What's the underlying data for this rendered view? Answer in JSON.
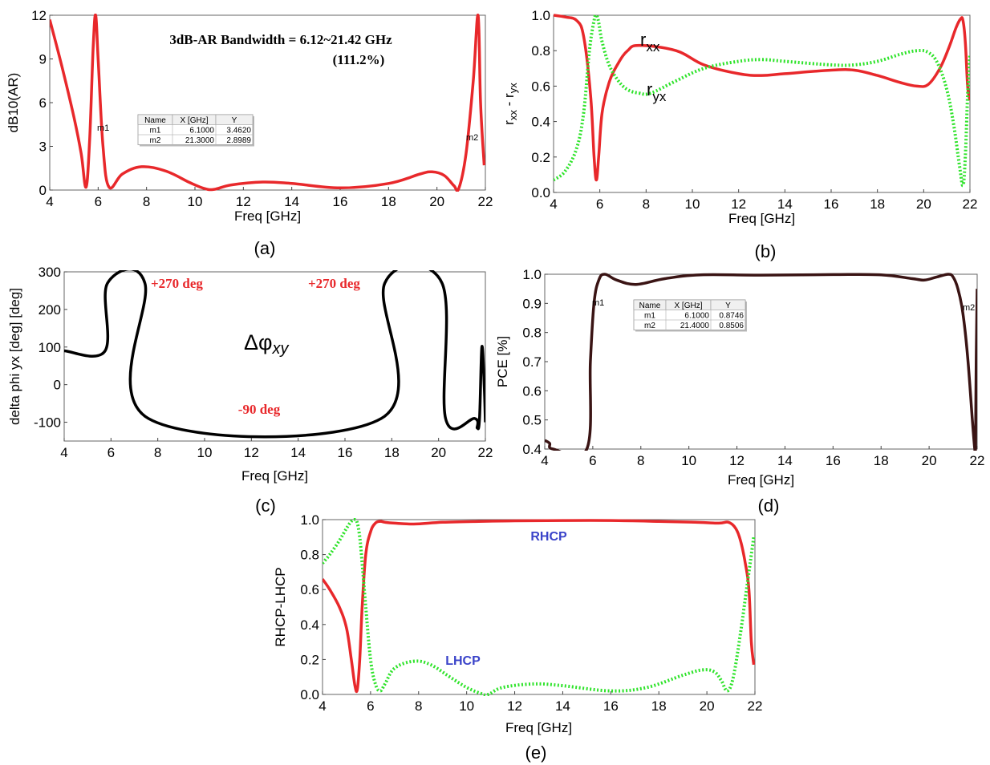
{
  "chart_data": [
    {
      "panel": "(a)",
      "type": "line",
      "xlabel": "Freq [GHz]",
      "ylabel": "dB10(AR)",
      "xlim": [
        4,
        22
      ],
      "ylim": [
        0,
        12
      ],
      "xticks": [
        4,
        6,
        8,
        10,
        12,
        14,
        16,
        18,
        20,
        22
      ],
      "yticks": [
        0,
        3,
        6,
        9,
        12
      ],
      "grid": false,
      "annotations": [
        "3dB-AR Bandwidth = 6.12~21.42 GHz",
        "(111.2%)"
      ],
      "marker_table": {
        "headers": [
          "Name",
          "X [GHz]",
          "Y"
        ],
        "rows": [
          [
            "m1",
            "6.1000",
            "3.4620"
          ],
          [
            "m2",
            "21.3000",
            "2.8989"
          ]
        ]
      },
      "markers": [
        {
          "name": "m1",
          "x": 6.1,
          "y": 3.462
        },
        {
          "name": "m2",
          "x": 21.3,
          "y": 2.8989
        }
      ],
      "series": [
        {
          "color": "#e8282b",
          "style": "solid",
          "x": [
            4,
            4.5,
            5,
            5.3,
            5.5,
            5.65,
            5.8,
            5.9,
            6.0,
            6.2,
            6.45,
            7.0,
            7.8,
            8.8,
            9.8,
            10.4,
            10.8,
            11.5,
            12.8,
            14.0,
            16.0,
            18.0,
            19.3,
            19.8,
            20.3,
            20.7,
            20.9,
            21.2,
            21.5,
            21.7,
            21.8,
            21.95
          ],
          "y": [
            11.7,
            8.5,
            5.0,
            2.5,
            0.2,
            3.5,
            10.0,
            12.0,
            9.0,
            3.0,
            0.2,
            1.1,
            1.6,
            1.3,
            0.5,
            0.1,
            0.05,
            0.35,
            0.55,
            0.45,
            0.15,
            0.45,
            1.1,
            1.25,
            1.0,
            0.3,
            0.1,
            2.5,
            7.5,
            12.0,
            6.0,
            1.7
          ]
        }
      ]
    },
    {
      "panel": "(b)",
      "type": "line",
      "xlabel": "Freq [GHz]",
      "ylabel": "r",
      "ylabel_sub": "xx",
      "ylabel_sep": " - r",
      "ylabel_sub2": "yx",
      "xlim": [
        4,
        22
      ],
      "ylim": [
        0,
        1
      ],
      "xticks": [
        4,
        6,
        8,
        10,
        12,
        14,
        16,
        18,
        20,
        22
      ],
      "yticks": [
        0.0,
        0.2,
        0.4,
        0.6,
        0.8,
        1.0
      ],
      "grid": false,
      "series": [
        {
          "name": "r",
          "name_sub": "xx",
          "color": "#e8282b",
          "style": "solid",
          "x": [
            4,
            4.5,
            5,
            5.3,
            5.6,
            5.75,
            5.85,
            5.95,
            6.1,
            6.4,
            6.8,
            7.2,
            7.7,
            9.3,
            10.5,
            12,
            13,
            14,
            16,
            17,
            18,
            19,
            19.7,
            20.2,
            20.7,
            21.1,
            21.4,
            21.6,
            21.7,
            21.8,
            21.9,
            22
          ],
          "y": [
            1.0,
            0.99,
            0.97,
            0.88,
            0.55,
            0.2,
            0.07,
            0.2,
            0.45,
            0.62,
            0.73,
            0.8,
            0.83,
            0.8,
            0.72,
            0.67,
            0.66,
            0.67,
            0.69,
            0.69,
            0.66,
            0.62,
            0.6,
            0.61,
            0.7,
            0.82,
            0.93,
            0.98,
            0.97,
            0.85,
            0.6,
            0.52
          ]
        },
        {
          "name": "r",
          "name_sub": "yx",
          "color": "#2ee32a",
          "style": "dotted",
          "x": [
            4,
            4.5,
            5,
            5.3,
            5.55,
            5.75,
            5.85,
            5.95,
            6.1,
            6.4,
            6.8,
            7.2,
            7.7,
            8.2,
            9.3,
            10.5,
            12,
            13,
            14,
            16,
            17,
            18,
            19,
            19.7,
            20.2,
            20.6,
            21.0,
            21.3,
            21.55,
            21.7,
            21.8,
            21.9,
            22
          ],
          "y": [
            0.07,
            0.12,
            0.25,
            0.45,
            0.8,
            0.97,
            1.0,
            0.96,
            0.85,
            0.72,
            0.63,
            0.58,
            0.56,
            0.56,
            0.63,
            0.7,
            0.74,
            0.75,
            0.74,
            0.72,
            0.72,
            0.74,
            0.78,
            0.8,
            0.79,
            0.73,
            0.58,
            0.38,
            0.15,
            0.04,
            0.2,
            0.55,
            0.78
          ]
        }
      ]
    },
    {
      "panel": "(c)",
      "type": "line",
      "xlabel": "Freq [GHz]",
      "ylabel": "delta phi yx [deg] [deg]",
      "xlim": [
        4,
        22
      ],
      "ylim": [
        -150,
        300
      ],
      "xticks": [
        4,
        6,
        8,
        10,
        12,
        14,
        16,
        18,
        20,
        22
      ],
      "yticks": [
        -100,
        0,
        100,
        200,
        300
      ],
      "grid": false,
      "annotations": [
        "+270 deg",
        "+270 deg",
        "-90 deg",
        "Δφ",
        "xy"
      ],
      "series": [
        {
          "color": "#000000",
          "style": "solid",
          "x": [
            4,
            5.75,
            5.85,
            7.45,
            7.6,
            17.55,
            17.7,
            20.15,
            20.3,
            21.55,
            21.65,
            21.75,
            21.85,
            21.95,
            22
          ],
          "y": [
            90,
            90,
            270,
            270,
            -90,
            -90,
            270,
            270,
            -90,
            -90,
            -115,
            -90,
            100,
            0,
            -100
          ]
        }
      ]
    },
    {
      "panel": "(d)",
      "type": "line",
      "xlabel": "Freq [GHz]",
      "ylabel": "PCE [%]",
      "xlim": [
        4,
        22
      ],
      "ylim": [
        0.4,
        1.0
      ],
      "xticks": [
        4,
        6,
        8,
        10,
        12,
        14,
        16,
        18,
        20,
        22
      ],
      "yticks": [
        0.4,
        0.5,
        0.6,
        0.7,
        0.8,
        0.9,
        1.0
      ],
      "grid": false,
      "marker_table": {
        "headers": [
          "Name",
          "X [GHz]",
          "Y"
        ],
        "rows": [
          [
            "m1",
            "6.1000",
            "0.8746"
          ],
          [
            "m2",
            "21.4000",
            "0.8506"
          ]
        ]
      },
      "markers": [
        {
          "name": "m1",
          "x": 6.1,
          "y": 0.8746
        },
        {
          "name": "m2",
          "x": 21.4,
          "y": 0.8506
        }
      ],
      "series": [
        {
          "color": "#3a1414",
          "style": "solid",
          "x": [
            4,
            4.2,
            4.35,
            5.75,
            5.9,
            6.05,
            6.25,
            6.5,
            7.0,
            7.8,
            9.0,
            10.5,
            13,
            16,
            18,
            19.3,
            19.8,
            20.3,
            20.8,
            21.0,
            21.2,
            21.4,
            21.6,
            21.8,
            21.9,
            21.93,
            21.96,
            22
          ],
          "y": [
            0.43,
            0.42,
            0.4,
            0.4,
            0.7,
            0.9,
            0.98,
            1.0,
            0.98,
            0.965,
            0.985,
            0.998,
            0.997,
            0.999,
            0.998,
            0.985,
            0.98,
            0.99,
            1.0,
            0.99,
            0.95,
            0.87,
            0.72,
            0.5,
            0.4,
            0.4,
            0.7,
            0.95
          ]
        }
      ]
    },
    {
      "panel": "(e)",
      "type": "line",
      "xlabel": "Freq [GHz]",
      "ylabel": "RHCP-LHCP",
      "xlim": [
        4,
        22
      ],
      "ylim": [
        0,
        1
      ],
      "xticks": [
        4,
        6,
        8,
        10,
        12,
        14,
        16,
        18,
        20,
        22
      ],
      "yticks": [
        0.0,
        0.2,
        0.4,
        0.6,
        0.8,
        1.0
      ],
      "grid": false,
      "series": [
        {
          "name": "RHCP",
          "color": "#e8282b",
          "style": "solid",
          "x": [
            4,
            4.3,
            4.7,
            5.0,
            5.2,
            5.35,
            5.45,
            5.55,
            5.65,
            5.8,
            6.0,
            6.2,
            6.4,
            6.6,
            7.0,
            7.8,
            9.0,
            10.5,
            12,
            14,
            16,
            18,
            19.5,
            20.5,
            20.9,
            21.2,
            21.4,
            21.6,
            21.75,
            21.85,
            21.95
          ],
          "y": [
            0.66,
            0.6,
            0.5,
            0.38,
            0.2,
            0.05,
            0.03,
            0.2,
            0.5,
            0.8,
            0.93,
            0.98,
            0.99,
            0.985,
            0.98,
            0.975,
            0.985,
            0.99,
            0.993,
            0.995,
            0.995,
            0.99,
            0.985,
            0.98,
            0.985,
            0.95,
            0.88,
            0.75,
            0.6,
            0.3,
            0.17
          ]
        },
        {
          "name": "LHCP",
          "color": "#2ee32a",
          "style": "dotted",
          "x": [
            4,
            4.3,
            4.7,
            5.0,
            5.2,
            5.35,
            5.45,
            5.55,
            5.65,
            5.8,
            6.0,
            6.2,
            6.4,
            6.6,
            7.0,
            7.8,
            8.5,
            9.3,
            10.0,
            10.6,
            10.9,
            11.5,
            12.8,
            14,
            16,
            17.5,
            19,
            19.8,
            20.3,
            20.6,
            20.85,
            21.1,
            21.4,
            21.6,
            21.75,
            21.85,
            21.95
          ],
          "y": [
            0.75,
            0.8,
            0.88,
            0.95,
            0.99,
            1.0,
            0.98,
            0.9,
            0.75,
            0.5,
            0.2,
            0.06,
            0.02,
            0.06,
            0.15,
            0.19,
            0.17,
            0.1,
            0.04,
            0.005,
            0.0,
            0.04,
            0.06,
            0.05,
            0.02,
            0.04,
            0.11,
            0.14,
            0.13,
            0.08,
            0.02,
            0.1,
            0.35,
            0.55,
            0.7,
            0.8,
            0.9
          ]
        }
      ]
    }
  ]
}
